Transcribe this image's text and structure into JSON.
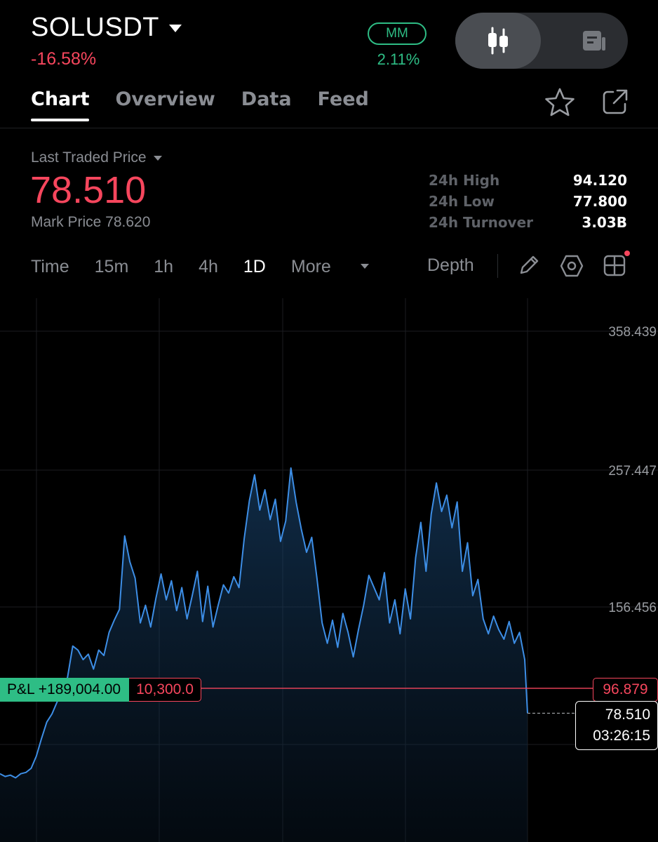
{
  "header": {
    "symbol": "SOLUSDT",
    "change_pct": "-16.58%",
    "mm_label": "MM",
    "mm_value": "2.11%"
  },
  "tabs": [
    {
      "label": "Chart",
      "active": true
    },
    {
      "label": "Overview",
      "active": false
    },
    {
      "label": "Data",
      "active": false
    },
    {
      "label": "Feed",
      "active": false
    }
  ],
  "price": {
    "label": "Last Traded Price",
    "value": "78.510",
    "mark_price": "Mark Price 78.620"
  },
  "stats": [
    {
      "label": "24h High",
      "value": "94.120"
    },
    {
      "label": "24h Low",
      "value": "77.800"
    },
    {
      "label": "24h Turnover",
      "value": "3.03B"
    }
  ],
  "intervals": {
    "time": "Time",
    "m15": "15m",
    "h1": "1h",
    "h4": "4h",
    "d1": "1D",
    "more": "More",
    "depth": "Depth"
  },
  "icons": {
    "symbol_dropdown": "chevron-down-icon",
    "candles": "candlestick-icon",
    "trades": "order-book-icon",
    "favorite": "star-icon",
    "share": "share-icon",
    "draw": "pencil-icon",
    "indicators": "hexagon-icon",
    "layout": "grid-icon"
  },
  "colors": {
    "up": "#2ebd85",
    "down": "#f6465d",
    "line": "#3d8ee6",
    "muted": "#8a8d93"
  },
  "chart_data": {
    "type": "area",
    "y_axis_labels": [
      "358.439",
      "257.447",
      "156.456"
    ],
    "ylim": [
      30,
      390
    ],
    "grid": true,
    "series": [
      {
        "values": [
          34,
          32,
          33,
          31,
          34,
          35,
          38,
          47,
          60,
          72,
          78,
          87,
          95,
          105,
          128,
          125,
          118,
          122,
          111,
          125,
          121,
          138,
          147,
          155,
          209,
          190,
          178,
          145,
          158,
          142,
          163,
          181,
          162,
          176,
          154,
          171,
          148,
          165,
          183,
          146,
          172,
          142,
          158,
          173,
          167,
          179,
          171,
          207,
          235,
          254,
          228,
          243,
          221,
          236,
          205,
          220,
          259,
          234,
          214,
          197,
          208,
          178,
          145,
          130,
          147,
          127,
          152,
          138,
          120,
          140,
          158,
          180,
          171,
          162,
          182,
          145,
          162,
          137,
          170,
          148,
          193,
          219,
          183,
          225,
          248,
          227,
          239,
          215,
          234,
          183,
          204,
          165,
          177,
          148,
          137,
          150,
          140,
          133,
          146,
          130,
          138,
          118
        ]
      }
    ],
    "position_line": 96.879,
    "last_price": 78.51,
    "pnl_label": "P&L +189,004.00",
    "position_qty": "10,300.0",
    "position_price_label": "96.879",
    "last_price_label": "78.510",
    "countdown": "03:26:15"
  }
}
